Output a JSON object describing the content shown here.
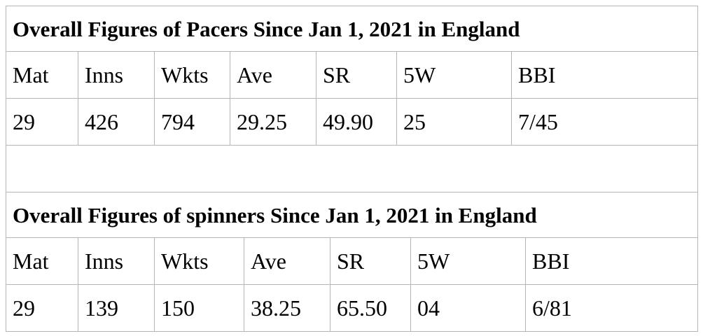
{
  "pacers": {
    "title": "Overall Figures of Pacers Since Jan 1, 2021 in England",
    "columns": [
      "Mat",
      "Inns",
      "Wkts",
      "Ave",
      "SR",
      "5W",
      "BBI"
    ],
    "values": [
      "29",
      "426",
      "794",
      "29.25",
      "49.90",
      "25",
      "7/45"
    ]
  },
  "spinners": {
    "title": "Overall Figures of spinners Since Jan 1, 2021 in England",
    "columns": [
      "Mat",
      "Inns",
      "Wkts",
      "Ave",
      "SR",
      "5W",
      "BBI"
    ],
    "values": [
      "29",
      "139",
      "150",
      "38.25",
      "65.50",
      "04",
      "6/81"
    ]
  }
}
